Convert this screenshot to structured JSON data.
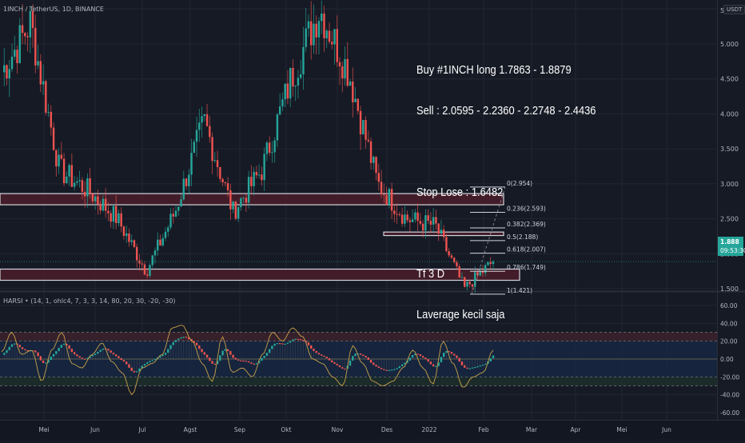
{
  "header": {
    "symbol_title": "1INCH / TetherUS, 1D, BINANCE",
    "currency": "USDT"
  },
  "note": {
    "lines": [
      "Buy #1INCH long 1.7863 - 1.8879",
      "Sell : 2.0595 - 2.2360 - 2.2748 - 2.4436",
      "",
      "Stop Lose : 1.6482",
      "",
      "Tf 3 D",
      "Laverage kecil saja"
    ]
  },
  "last_price": {
    "value": "1.888",
    "countdown": "09:53:30",
    "color": "#26a69a"
  },
  "indicator": {
    "title": "HARSI • (14, 1, ohlc4, 7, 3, 3, 14, 80, 20, 30, -20, -30)"
  },
  "colors": {
    "background": "#161a25",
    "grid": "#232733",
    "up": "#26a69a",
    "down": "#ef5350",
    "zone_fill": "#4a1e2a",
    "zone_border": "#d1d4dc",
    "fib_line": "#d1d4dc",
    "rsi_line": "#c8a04a",
    "ob_band": "#3a222c",
    "os_band": "#1c2e2a",
    "mid_band": "#172a45"
  },
  "chart_data": [
    {
      "type": "candlestick",
      "title": "1INCH / TetherUS, 1D, BINANCE",
      "ylabel": "USDT",
      "ylim": [
        1.2,
        5.6
      ],
      "y_ticks": [
        "5.500",
        "5.000",
        "4.500",
        "4.000",
        "3.500",
        "3.000",
        "2.500",
        "2.000",
        "1.500"
      ],
      "x_ticks": [
        "Mei",
        "Jun",
        "Jul",
        "Agst",
        "Sep",
        "Okt",
        "Nov",
        "Des",
        "2022",
        "Feb",
        "Mar",
        "Apr",
        "Mei",
        "Jun"
      ],
      "approx_close_path": [
        {
          "month": "Apr 2021 end",
          "price": 4.6
        },
        {
          "month": "Mei",
          "price": 5.3
        },
        {
          "month": "Mei mid",
          "price": 3.2
        },
        {
          "month": "Jun",
          "price": 2.9
        },
        {
          "month": "Jul",
          "price": 2.5
        },
        {
          "month": "Jul end",
          "price": 1.75
        },
        {
          "month": "Agst",
          "price": 2.6
        },
        {
          "month": "Sep",
          "price": 3.9
        },
        {
          "month": "Sep end",
          "price": 2.6
        },
        {
          "month": "Okt",
          "price": 3.2
        },
        {
          "month": "Okt end",
          "price": 4.5
        },
        {
          "month": "Nov",
          "price": 5.5
        },
        {
          "month": "Nov mid",
          "price": 4.6
        },
        {
          "month": "Des",
          "price": 3.0
        },
        {
          "month": "Des end",
          "price": 2.5
        },
        {
          "month": "2022",
          "price": 2.4
        },
        {
          "month": "Jan end",
          "price": 1.5
        },
        {
          "month": "Feb",
          "price": 1.888
        }
      ],
      "last_price": 1.888,
      "annotations": {
        "zones": [
          {
            "from": 2.7,
            "to": 2.86,
            "label": "resistance zone"
          },
          {
            "from": 2.26,
            "to": 2.31,
            "label": "resistance zone"
          },
          {
            "from": 1.62,
            "to": 1.78,
            "label": "support zone"
          }
        ],
        "fibonacci": [
          {
            "level": "0",
            "price": 2.954
          },
          {
            "level": "0.236",
            "price": 2.593
          },
          {
            "level": "0.382",
            "price": 2.369
          },
          {
            "level": "0.5",
            "price": 2.188
          },
          {
            "level": "0.618",
            "price": 2.007
          },
          {
            "level": "0.786",
            "price": 1.749
          },
          {
            "level": "1",
            "price": 1.421
          }
        ],
        "text_note": "Buy #1INCH long 1.7863 - 1.8879 / Sell : 2.0595 - 2.2360 - 2.2748 - 2.4436 / Stop Lose : 1.6482 / Tf 3 D / Laverage kecil saja"
      }
    },
    {
      "type": "line",
      "title": "HARSI (14, 1, ohlc4, 7, 3, 3, 14, 80, 20, 30, -20, -30)",
      "ylim": [
        -70,
        70
      ],
      "y_ticks": [
        "60.00",
        "40.00",
        "20.00",
        "0.00",
        "-20.00",
        "-40.00",
        "-60.00"
      ],
      "bands": [
        {
          "from": 20,
          "to": 30,
          "label": "overbought"
        },
        {
          "from": -20,
          "to": 20,
          "label": "channel"
        },
        {
          "from": -30,
          "to": -20,
          "label": "oversold"
        }
      ],
      "rsi_series_approx": [
        8,
        30,
        5,
        10,
        -25,
        10,
        30,
        -5,
        -10,
        5,
        18,
        -3,
        -15,
        -40,
        -10,
        -5,
        5,
        35,
        38,
        20,
        -5,
        -25,
        25,
        -15,
        -10,
        -20,
        5,
        30,
        20,
        35,
        25,
        0,
        -5,
        -20,
        -30,
        15,
        -5,
        -25,
        -30,
        -25,
        -10,
        10,
        -10,
        -28,
        20,
        -5,
        -32,
        -20,
        -15,
        10
      ]
    }
  ]
}
